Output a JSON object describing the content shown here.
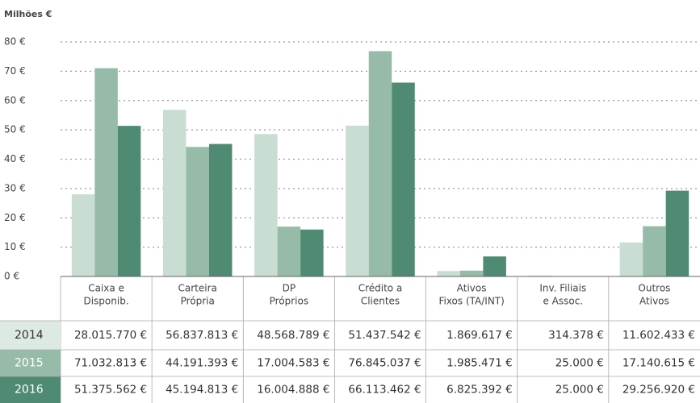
{
  "chart_data": {
    "type": "bar",
    "y_label": "Milhões €",
    "categories": [
      [
        "Caixa e",
        "Disponib."
      ],
      [
        "Carteira",
        "Própria"
      ],
      [
        "DP",
        "Próprios"
      ],
      [
        "Crédito a",
        "Clientes"
      ],
      [
        "Ativos",
        "Fixos (TA/INT)"
      ],
      [
        "Inv. Filiais",
        "e Assoc."
      ],
      [
        "Outros",
        "Ativos"
      ]
    ],
    "series": [
      {
        "name": "2014",
        "color": "#c9ddd3",
        "values": [
          28.01577,
          56.837813,
          48.568789,
          51.437542,
          1.869617,
          0.314378,
          11.602433
        ],
        "value_labels": [
          "28.015.770 €",
          "56.837.813 €",
          "48.568.789 €",
          "51.437.542 €",
          "1.869.617 €",
          "314.378 €",
          "11.602.433 €"
        ]
      },
      {
        "name": "2015",
        "color": "#96bba9",
        "values": [
          71.032813,
          44.191393,
          17.004583,
          76.845037,
          1.985471,
          0.025,
          17.140615
        ],
        "value_labels": [
          "71.032.813 €",
          "44.191.393 €",
          "17.004.583 €",
          "76.845.037 €",
          "1.985.471 €",
          "25.000 €",
          "17.140.615 €"
        ]
      },
      {
        "name": "2016",
        "color": "#4f8b72",
        "values": [
          51.375562,
          45.194813,
          16.004888,
          66.113462,
          6.825392,
          0.025,
          29.25692
        ],
        "value_labels": [
          "51.375.562 €",
          "45.194.813 €",
          "16.004.888 €",
          "66.113.462 €",
          "6.825.392 €",
          "25.000 €",
          "29.256.920 €"
        ]
      }
    ],
    "ylim": [
      0,
      80
    ],
    "yticks": [
      {
        "value": 0,
        "label": "0 €"
      },
      {
        "value": 10,
        "label": "10 €"
      },
      {
        "value": 20,
        "label": "20 €"
      },
      {
        "value": 30,
        "label": "30 €"
      },
      {
        "value": 40,
        "label": "40 €"
      },
      {
        "value": 50,
        "label": "50 €"
      },
      {
        "value": 60,
        "label": "60 €"
      },
      {
        "value": 70,
        "label": "70 €"
      },
      {
        "value": 80,
        "label": "80 €"
      }
    ],
    "grid": true
  }
}
